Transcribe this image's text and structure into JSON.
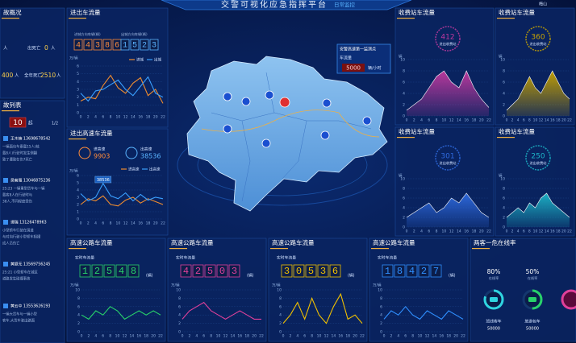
{
  "header": {
    "title": "交警可视化应急指挥平台",
    "mode": "日常监控",
    "location": "梅山"
  },
  "hours": [
    "0",
    "2",
    "4",
    "6",
    "8",
    "10",
    "12",
    "14",
    "16",
    "18",
    "20",
    "22"
  ],
  "overview": {
    "title": "故概况",
    "rows": [
      [
        "人",
        "出死亡",
        "0",
        "人"
      ],
      [
        "400",
        "人",
        "全年死亡",
        "2510",
        "人"
      ]
    ]
  },
  "list": {
    "title": "故列表",
    "count": 10,
    "unit": "起",
    "page": "1/2",
    "entries": [
      {
        "name": "王木楠 13698678542",
        "lines": [
          "一辆面包车乘载15人(核",
          "载8人)行驶时发生侧翻",
          "致了遭致在伤7死亡"
        ]
      },
      {
        "name": "吴菊雁 13046875236",
        "lines": [
          "25:23 一辆重型货车与一辆",
          "载客8人在行驶时与",
          "38人,不同程度受伤"
        ]
      },
      {
        "name": "谭瑞 13126478963",
        "lines": [
          "小型轿车行驶在国道",
          "与对向行驶小型轿车相撞",
          "成人员伤亡"
        ]
      },
      {
        "name": "黄颖无 13569756245",
        "lines": [
          "25:21 小型轿车在城区",
          "道路发生碰撞事故"
        ]
      },
      {
        "name": "黄云中 13553626193",
        "lines": [
          "一辆大货车与一辆小型",
          "客车,大货车驶出路面"
        ]
      }
    ]
  },
  "inout": {
    "title": "进出车流量",
    "in_label": "进城方向车辆(辆)",
    "out_label": "出城方向车辆(辆)",
    "in_total": 44386,
    "out_total": 1523,
    "unit": "万/辆",
    "ylim": [
      0,
      6
    ],
    "yticks": [
      0,
      1,
      2,
      3,
      4,
      5,
      6
    ],
    "series": [
      {
        "name": "进城",
        "color": "#f08c2e",
        "values": [
          1.5,
          2,
          1.8,
          3.5,
          4.8,
          3.2,
          2.5,
          3.8,
          4.5,
          2.2,
          3,
          1.2
        ]
      },
      {
        "name": "出城",
        "color": "#3aa0ff",
        "values": [
          2.5,
          1.5,
          2.8,
          3,
          3.6,
          4.2,
          3,
          2.2,
          3.4,
          4.6,
          2.5,
          2
        ]
      }
    ]
  },
  "highway": {
    "title": "进出高速车流量",
    "in_label": "进高速",
    "out_label": "出高速",
    "in_total": 9903,
    "out_total": 38536,
    "tooltip": "38536",
    "unit": "万/辆",
    "ylim": [
      0,
      6
    ],
    "yticks": [
      0,
      1,
      2,
      3,
      4,
      5,
      6
    ],
    "series": [
      {
        "name": "进高速",
        "color": "#f08c2e",
        "values": [
          2,
          2.8,
          2.5,
          3.2,
          2,
          1.8,
          2.6,
          3,
          2.2,
          2.8,
          2.4,
          2
        ]
      },
      {
        "name": "出高速",
        "color": "#3aa0ff",
        "values": [
          3.5,
          2.5,
          3,
          4.9,
          3.2,
          2.8,
          3.6,
          2.5,
          3.4,
          2.6,
          3,
          2.8
        ]
      }
    ]
  },
  "map": {
    "popup": {
      "title": "安警高速第一监测点",
      "label": "车流量",
      "value": 5000,
      "unit": "辆/小时"
    }
  },
  "tolls": [
    {
      "title": "收费站车流量",
      "value": 412,
      "caption": "进出收费站",
      "unit": "辆",
      "color": "#c0399f",
      "ylim": [
        0,
        10
      ],
      "yticks": [
        0,
        2,
        4,
        6,
        8,
        10
      ],
      "values": [
        1,
        2,
        3,
        5,
        7,
        8,
        6,
        5,
        8,
        5,
        3,
        1.5
      ]
    },
    {
      "title": "收费站车流量",
      "value": 360,
      "caption": "进出收费站",
      "unit": "辆",
      "color": "#c9a400",
      "ylim": [
        0,
        10
      ],
      "yticks": [
        0,
        2,
        4,
        6,
        8,
        10
      ],
      "values": [
        1,
        2,
        3,
        5,
        7,
        5,
        4,
        6,
        8,
        6,
        4,
        3
      ]
    },
    {
      "title": "收费站车流量",
      "value": 301,
      "caption": "进出收费站",
      "unit": "辆",
      "color": "#2f6be0",
      "ylim": [
        0,
        10
      ],
      "yticks": [
        0,
        2,
        4,
        6,
        8,
        10
      ],
      "values": [
        2,
        3,
        4,
        5,
        3,
        4,
        6,
        5,
        7,
        5,
        3,
        2
      ]
    },
    {
      "title": "收费站车流量",
      "value": 250,
      "caption": "进出收费站",
      "unit": "辆",
      "color": "#1db6c8",
      "ylim": [
        0,
        10
      ],
      "yticks": [
        0,
        2,
        4,
        6,
        8,
        10
      ],
      "values": [
        2,
        3,
        4,
        3,
        5,
        4,
        6,
        7,
        5,
        4,
        3,
        2
      ]
    }
  ],
  "roads": [
    {
      "title": "高速公路车流量",
      "caption": "实时车流量",
      "value": 12548,
      "count_unit": "(辆)",
      "unit": "万/辆",
      "color": "#28d26a",
      "ylim": [
        0,
        10
      ],
      "yticks": [
        0,
        2,
        4,
        6,
        8,
        10
      ],
      "values": [
        4,
        3,
        5,
        4,
        6,
        5,
        3,
        4,
        5,
        4,
        5,
        4
      ]
    },
    {
      "title": "高速公路车流量",
      "caption": "实时车流量",
      "value": 42503,
      "count_unit": "(辆)",
      "unit": "万/辆",
      "color": "#e0409a",
      "ylim": [
        0,
        10
      ],
      "yticks": [
        0,
        2,
        4,
        6,
        8,
        10
      ],
      "values": [
        3,
        5,
        6,
        7,
        5,
        4,
        3,
        4,
        5,
        4,
        3,
        3
      ]
    },
    {
      "title": "高速公路车流量",
      "caption": "实时车流量",
      "value": 30536,
      "count_unit": "(辆)",
      "unit": "万/辆",
      "color": "#f0c000",
      "ylim": [
        0,
        10
      ],
      "yticks": [
        0,
        2,
        4,
        6,
        8,
        10
      ],
      "values": [
        2,
        4,
        7,
        3,
        8,
        4,
        2,
        6,
        9,
        3,
        4,
        2
      ]
    },
    {
      "title": "高速公路车流量",
      "caption": "实时车流量",
      "value": 18427,
      "count_unit": "(辆)",
      "unit": "万/辆",
      "color": "#2f8fff",
      "ylim": [
        0,
        10
      ],
      "yticks": [
        0,
        2,
        4,
        6,
        8,
        10
      ],
      "values": [
        3,
        5,
        4,
        6,
        4,
        3,
        5,
        4,
        3,
        5,
        4,
        3
      ]
    }
  ],
  "online": {
    "title": "两客一危在线率",
    "items": [
      {
        "rate": 80,
        "rate_label": "80%",
        "caption": "在线率",
        "label": "班线客车",
        "count": 50000,
        "color": "#2fd4e0"
      },
      {
        "rate": 50,
        "rate_label": "50%",
        "caption": "在线率",
        "label": "旅游包车",
        "count": 50000,
        "color": "#28d26a"
      }
    ]
  }
}
